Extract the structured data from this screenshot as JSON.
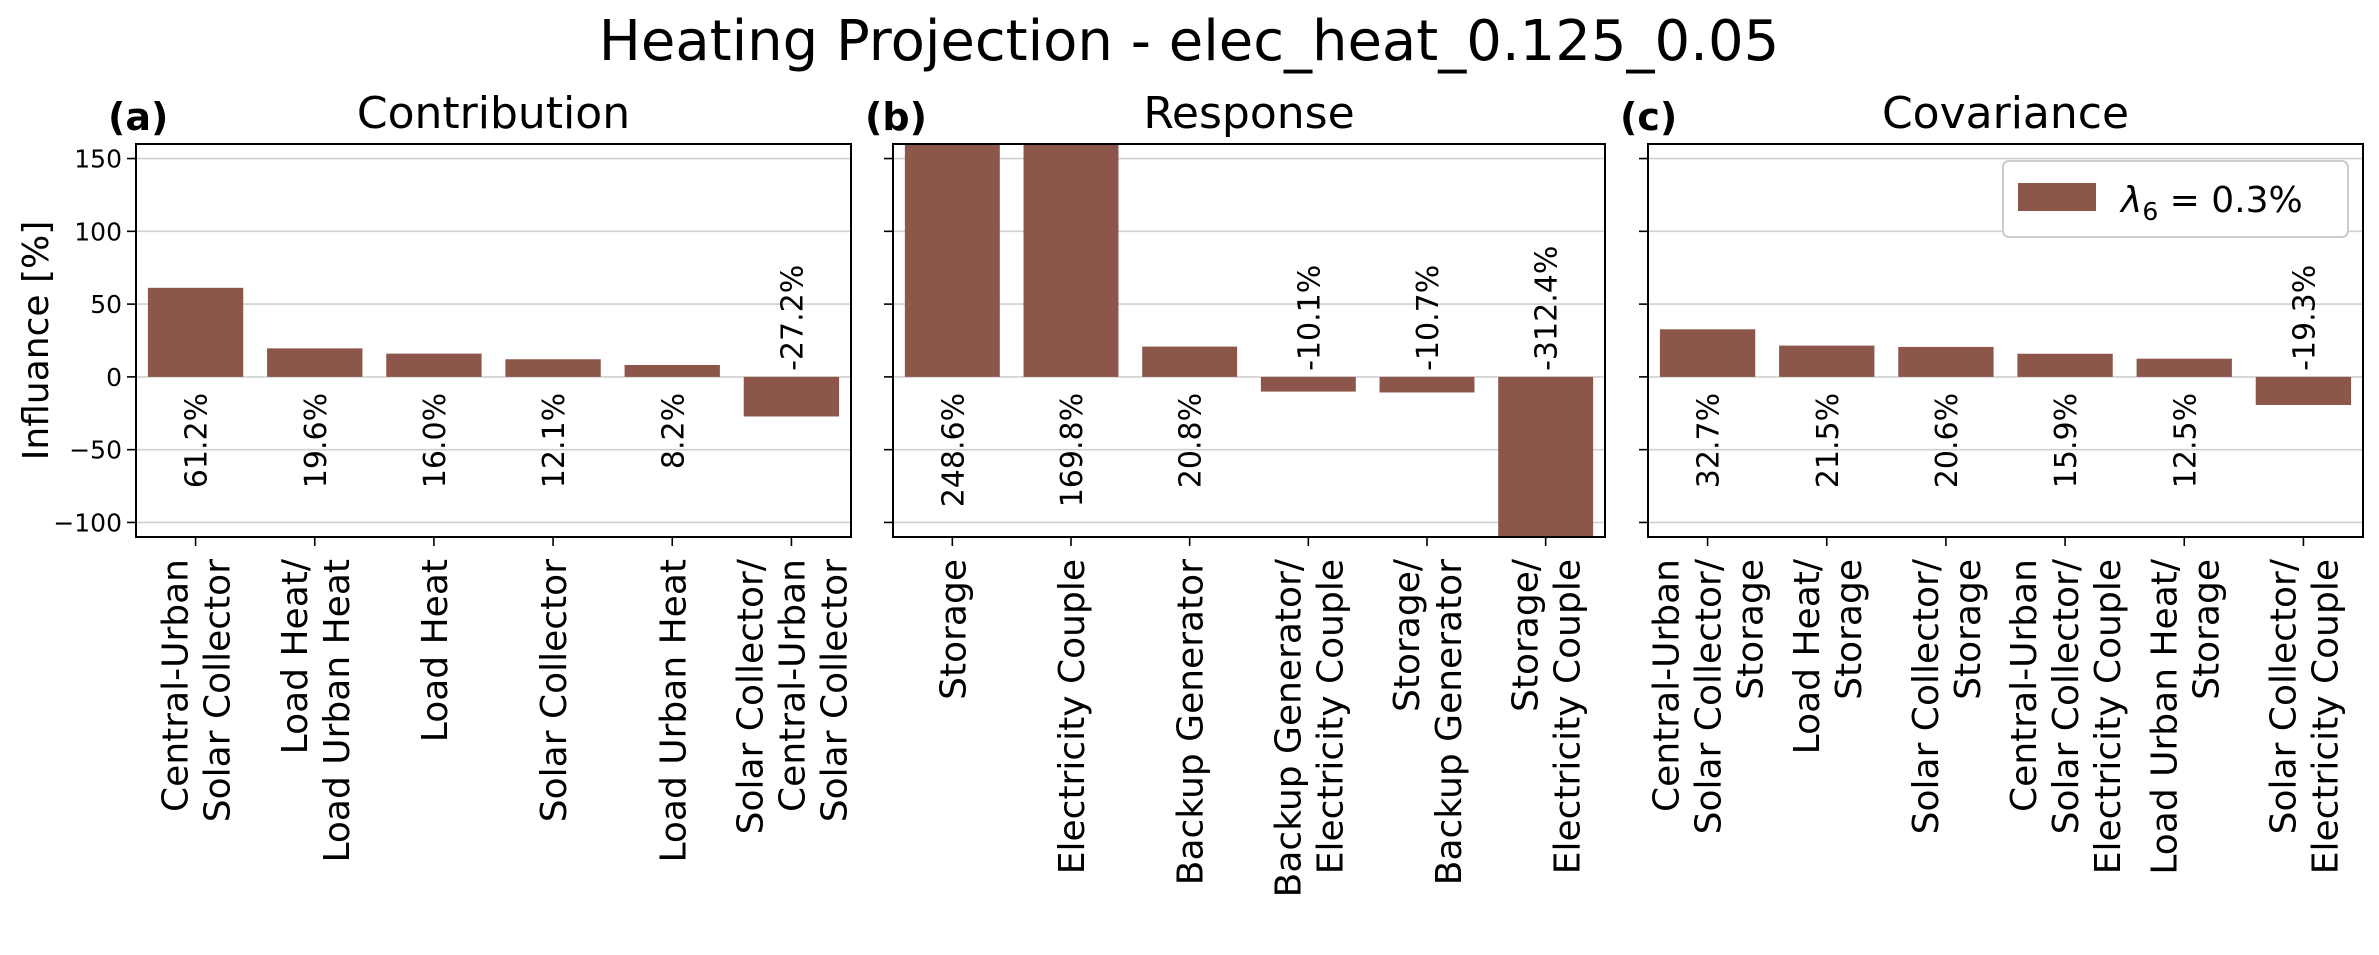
{
  "figure_title": "Heating Projection - elec_heat_0.125_0.05",
  "ylabel": "Influance [%]",
  "bar_color": "#8c564b",
  "legend": {
    "label": "λ",
    "subscript": "6",
    "value_text": " = 0.3%",
    "placement": "upper-right of panel (c)"
  },
  "chart_data": [
    {
      "type": "bar",
      "panel": "(a)",
      "title": "Contribution",
      "ylim": [
        -110,
        160
      ],
      "yticks": [
        -100,
        -50,
        0,
        50,
        100,
        150
      ],
      "ytick_labels": [
        "−100",
        "−50",
        "0",
        "50",
        "100",
        "150"
      ],
      "grid": true,
      "categories": [
        [
          "Central-Urban",
          "Solar Collector"
        ],
        [
          "Load Heat/",
          "Load Urban Heat"
        ],
        [
          "Load Heat"
        ],
        [
          "Solar Collector"
        ],
        [
          "Load Urban Heat"
        ],
        [
          "Solar Collector/",
          "Central-Urban",
          "Solar Collector"
        ]
      ],
      "values": [
        61.2,
        19.6,
        16.0,
        12.1,
        8.2,
        -27.2
      ],
      "data_labels": [
        "61.2%",
        "19.6%",
        "16.0%",
        "12.1%",
        "8.2%",
        "-27.2%"
      ]
    },
    {
      "type": "bar",
      "panel": "(b)",
      "title": "Response",
      "ylim": [
        -110,
        160
      ],
      "yticks": [
        -100,
        -50,
        0,
        50,
        100,
        150
      ],
      "grid": true,
      "categories": [
        [
          "Storage"
        ],
        [
          "Electricity Couple"
        ],
        [
          "Backup Generator"
        ],
        [
          "Backup Generator/",
          "Electricity Couple"
        ],
        [
          "Storage/",
          "Backup Generator"
        ],
        [
          "Storage/",
          "Electricity Couple"
        ]
      ],
      "values": [
        248.6,
        169.8,
        20.8,
        -10.1,
        -10.7,
        -312.4
      ],
      "data_labels": [
        "248.6%",
        "169.8%",
        "20.8%",
        "-10.1%",
        "-10.7%",
        "-312.4%"
      ]
    },
    {
      "type": "bar",
      "panel": "(c)",
      "title": "Covariance",
      "ylim": [
        -110,
        160
      ],
      "yticks": [
        -100,
        -50,
        0,
        50,
        100,
        150
      ],
      "grid": true,
      "categories": [
        [
          "Central-Urban",
          "Solar Collector/",
          "Storage"
        ],
        [
          "Load Heat/",
          "Storage"
        ],
        [
          "Solar Collector/",
          "Storage"
        ],
        [
          "Central-Urban",
          "Solar Collector/",
          "Electricity Couple"
        ],
        [
          "Load Urban Heat/",
          "Storage"
        ],
        [
          "Solar Collector/",
          "Electricity Couple"
        ]
      ],
      "values": [
        32.7,
        21.5,
        20.6,
        15.9,
        12.5,
        -19.3
      ],
      "data_labels": [
        "32.7%",
        "21.5%",
        "20.6%",
        "15.9%",
        "12.5%",
        "-19.3%"
      ]
    }
  ]
}
